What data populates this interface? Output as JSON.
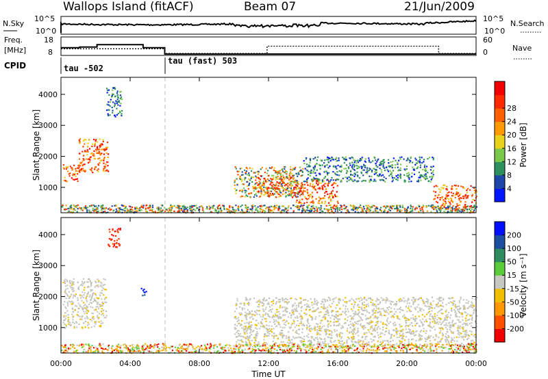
{
  "header": {
    "left_title": "Wallops Island (fitACF)",
    "center_title": "Beam 07",
    "right_title": "21/Jun/2009"
  },
  "strips": {
    "nsky_label": "N.Sky",
    "nsky_ticks": [
      "10^5",
      "10^0"
    ],
    "nsearch_label": "N.Search",
    "nsearch_ticks": [
      "10^5",
      "10^0"
    ],
    "freq_label_line1": "Freq.",
    "freq_label_line2": "[MHz]",
    "freq_ticks": [
      "18",
      "8"
    ],
    "nave_label": "Nave",
    "nave_ticks": [
      "60",
      "0"
    ],
    "cpid_label": "CPID",
    "cpid_segments": [
      {
        "text": "tau -502",
        "start": "00:00",
        "end": "06:00"
      },
      {
        "text": "tau (fast) 503",
        "start": "06:00",
        "end": "24:00"
      }
    ],
    "freq_steps": [
      {
        "start": "00:00",
        "end": "01:05",
        "value": 12
      },
      {
        "start": "01:05",
        "end": "02:05",
        "value": 12.5
      },
      {
        "start": "02:05",
        "end": "04:45",
        "value": 14
      },
      {
        "start": "04:45",
        "end": "06:00",
        "value": 12
      },
      {
        "start": "06:00",
        "end": "24:00",
        "value": 8
      }
    ],
    "nave_steps": [
      {
        "start": "00:00",
        "end": "06:00",
        "value": 20
      },
      {
        "start": "06:00",
        "end": "11:55",
        "value": 2
      },
      {
        "start": "11:55",
        "end": "21:50",
        "value": 30
      },
      {
        "start": "21:50",
        "end": "24:00",
        "value": 2
      }
    ]
  },
  "chart_data": [
    {
      "type": "heatmap",
      "title": "",
      "xlabel": "",
      "ylabel": "Slant Range [km]",
      "xlim": [
        "00:00",
        "24:00"
      ],
      "ylim": [
        180,
        4550
      ],
      "y_ticks": [
        "1000",
        "2000",
        "3000",
        "4000"
      ],
      "colorbar": {
        "label": "Power [dB]",
        "ticks": [
          "4",
          "8",
          "12",
          "16",
          "20",
          "24",
          "28"
        ],
        "colors": [
          "#0016ff",
          "#1e45a8",
          "#2f8f5f",
          "#7ac94a",
          "#e8d21c",
          "#ff9a00",
          "#ff6000",
          "#ff2a00",
          "#f00000"
        ]
      },
      "regions": [
        {
          "t0": 0.1,
          "t1": 1.1,
          "r0": 1200,
          "r1": 1750,
          "level": "high"
        },
        {
          "t0": 1.0,
          "t1": 2.7,
          "r0": 1500,
          "r1": 2600,
          "level": "high"
        },
        {
          "t0": 2.6,
          "t1": 3.5,
          "r0": 3300,
          "r1": 4250,
          "level": "low"
        },
        {
          "t0": 10.0,
          "t1": 14.0,
          "r0": 700,
          "r1": 1700,
          "level": "mid"
        },
        {
          "t0": 11.3,
          "t1": 13.5,
          "r0": 700,
          "r1": 1400,
          "level": "high"
        },
        {
          "t0": 13.5,
          "t1": 16.0,
          "r0": 500,
          "r1": 1300,
          "level": "high"
        },
        {
          "t0": 14.0,
          "t1": 21.5,
          "r0": 1200,
          "r1": 2000,
          "level": "low"
        },
        {
          "t0": 21.5,
          "t1": 24.0,
          "r0": 300,
          "r1": 1100,
          "level": "high"
        },
        {
          "t0": 0.0,
          "t1": 24.0,
          "r0": 200,
          "r1": 450,
          "level": "ground"
        }
      ]
    },
    {
      "type": "heatmap",
      "title": "",
      "xlabel": "Time UT",
      "ylabel": "Slant Range [km]",
      "xlim": [
        "00:00",
        "24:00"
      ],
      "ylim": [
        180,
        4550
      ],
      "x_ticks": [
        "00:00",
        "04:00",
        "08:00",
        "12:00",
        "16:00",
        "20:00",
        "00:00"
      ],
      "y_ticks": [
        "1000",
        "2000",
        "3000",
        "4000"
      ],
      "colorbar": {
        "label": "Velocity [m s⁻¹]",
        "ticks": [
          "200",
          "100",
          "50",
          "15",
          "-15",
          "-50",
          "-100",
          "-200"
        ],
        "colors": [
          "#0010ff",
          "#1d4fa0",
          "#2f8c60",
          "#5ccc3c",
          "#c8c8c3",
          "#f0c000",
          "#ff9800",
          "#ff5000",
          "#f00000"
        ]
      },
      "regions": [
        {
          "t0": 0.1,
          "t1": 2.6,
          "r0": 1000,
          "r1": 2600,
          "level": "gray"
        },
        {
          "t0": 2.7,
          "t1": 3.4,
          "r0": 3600,
          "r1": 4250,
          "level": "red"
        },
        {
          "t0": 4.6,
          "t1": 4.9,
          "r0": 2000,
          "r1": 2300,
          "level": "blue"
        },
        {
          "t0": 10.0,
          "t1": 24.0,
          "r0": 400,
          "r1": 2000,
          "level": "gray"
        },
        {
          "t0": 0.0,
          "t1": 24.0,
          "r0": 200,
          "r1": 500,
          "level": "ground"
        }
      ]
    }
  ]
}
